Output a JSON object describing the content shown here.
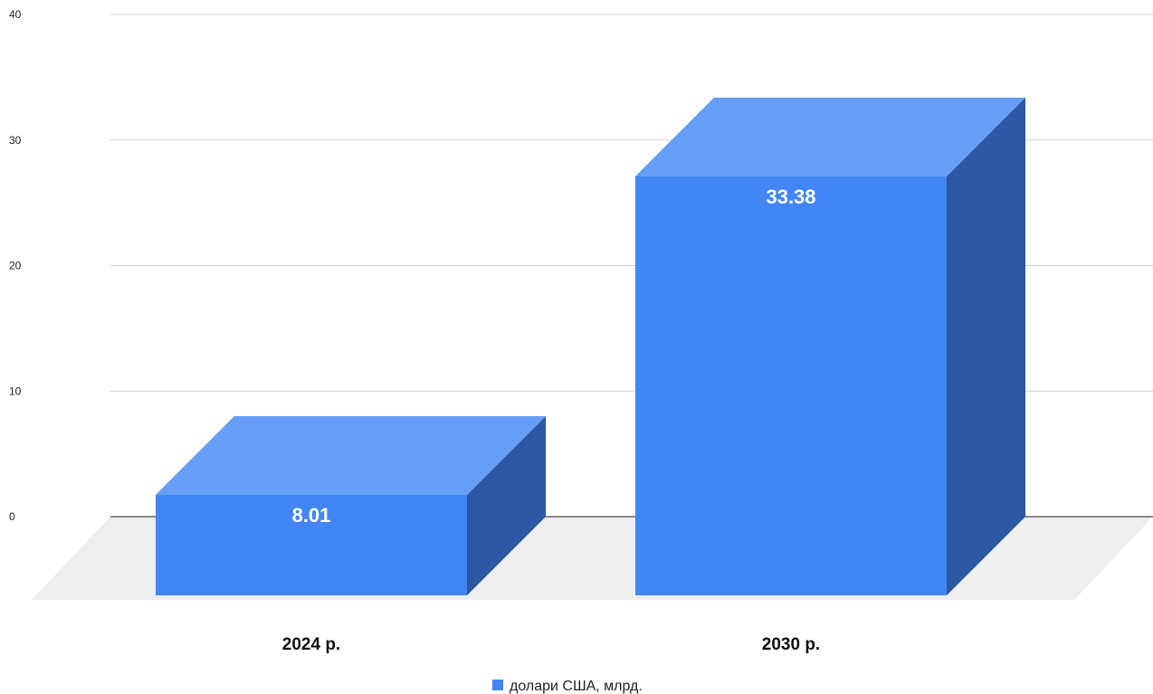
{
  "chart_data": {
    "type": "bar",
    "style": "3d-column",
    "title": "",
    "xlabel": "",
    "ylabel": "",
    "categories": [
      "2024 р.",
      "2030 р."
    ],
    "series": [
      {
        "name": "долари США, млрд.",
        "values": [
          8.01,
          33.38
        ]
      }
    ],
    "ylim": [
      0,
      40
    ],
    "yticks": [
      0,
      10,
      20,
      30,
      40
    ],
    "grid": true,
    "legend": "bottom-center",
    "colors": {
      "front": "#4285f4",
      "top": "#669df6",
      "side": "#2b57a3",
      "floor": "#eeeeee",
      "gridline": "#d0d0d0",
      "baseline": "#444444"
    }
  }
}
